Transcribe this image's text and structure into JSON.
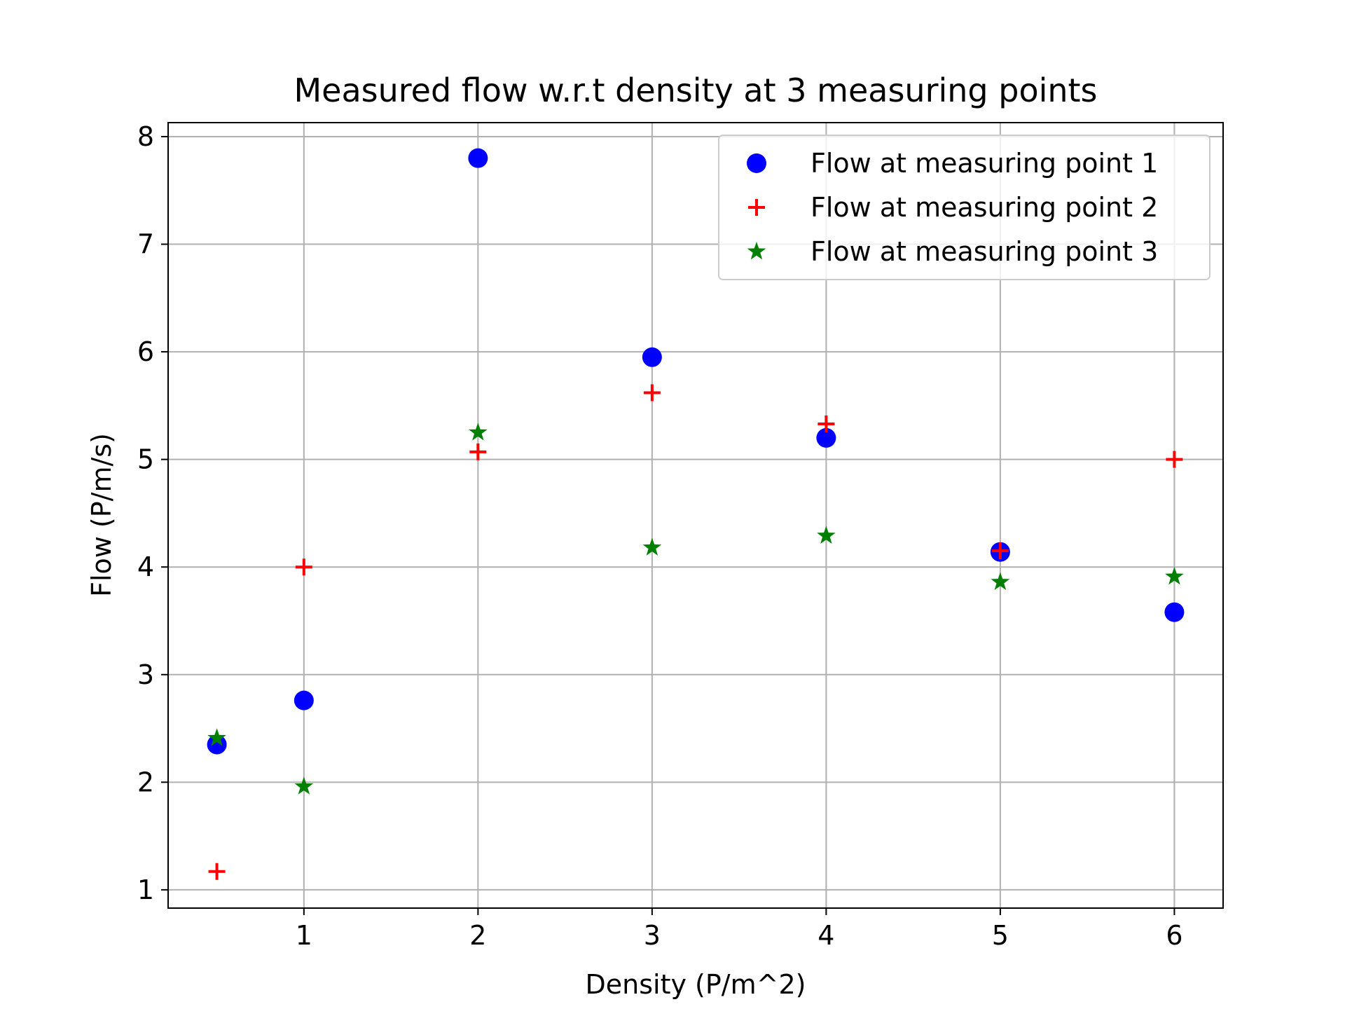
{
  "chart_data": {
    "type": "scatter",
    "title": "Measured flow w.r.t density at 3 measuring points",
    "xlabel": "Density (P/m^2)",
    "ylabel": "Flow (P/m/s)",
    "xlim": [
      0.22,
      6.28
    ],
    "ylim": [
      0.83,
      8.13
    ],
    "xticks": [
      1,
      2,
      3,
      4,
      5,
      6
    ],
    "yticks": [
      1,
      2,
      3,
      4,
      5,
      6,
      7,
      8
    ],
    "grid": true,
    "legend_position": "top-right",
    "series": [
      {
        "name": "Flow at measuring point 1",
        "marker": "circle",
        "color": "#0000ff",
        "x": [
          0.5,
          1,
          2,
          3,
          4,
          5,
          6
        ],
        "y": [
          2.35,
          2.76,
          7.8,
          5.95,
          5.2,
          4.14,
          3.58
        ]
      },
      {
        "name": "Flow at measuring point 2",
        "marker": "plus",
        "color": "#ff0000",
        "x": [
          0.5,
          1,
          2,
          3,
          4,
          5,
          6
        ],
        "y": [
          1.17,
          4.0,
          5.07,
          5.62,
          5.33,
          4.15,
          5.0
        ]
      },
      {
        "name": "Flow at measuring point 3",
        "marker": "star",
        "color": "#008000",
        "x": [
          0.5,
          1,
          2,
          3,
          4,
          5,
          6
        ],
        "y": [
          2.41,
          1.96,
          5.25,
          4.18,
          4.29,
          3.86,
          3.91
        ]
      }
    ]
  }
}
